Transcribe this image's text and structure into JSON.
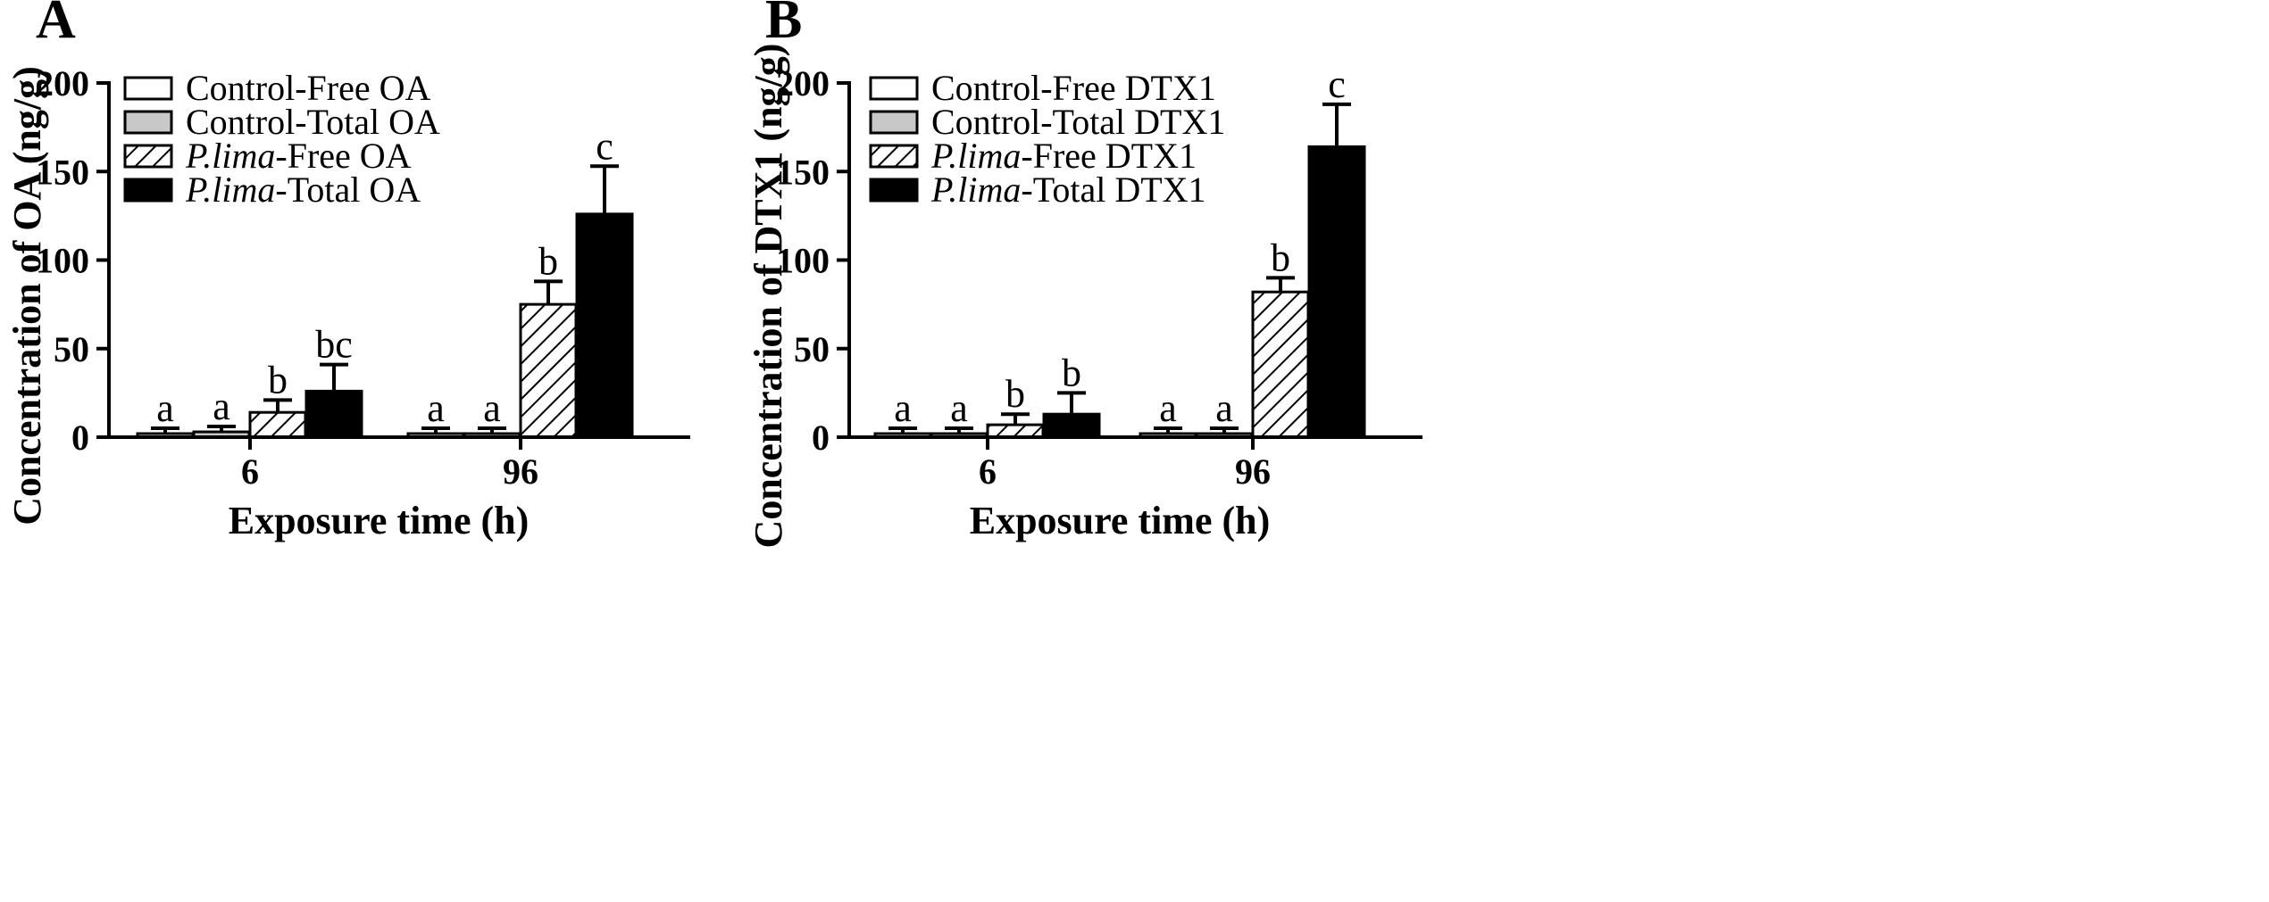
{
  "chart_data": [
    {
      "panel": "A",
      "type": "bar",
      "xlabel": "Exposure time (h)",
      "ylabel": "Concentration of OA (ng/g)",
      "ylim": [
        0,
        200
      ],
      "yticks": [
        0,
        50,
        100,
        150,
        200
      ],
      "categories": [
        "6",
        "96"
      ],
      "legend_position": "top-left",
      "series": [
        {
          "name": "Control-Free OA",
          "label_prefix": "",
          "label_rest": "Control-Free OA",
          "fill": "white",
          "values": [
            1,
            0
          ],
          "errors": [
            1.5,
            1.5
          ],
          "sig": [
            "a",
            "a"
          ]
        },
        {
          "name": "Control-Total OA",
          "label_prefix": "",
          "label_rest": "Control-Total OA",
          "fill": "gray",
          "values": [
            3,
            1
          ],
          "errors": [
            1.5,
            1.5
          ],
          "sig": [
            "a",
            "a"
          ]
        },
        {
          "name": "P.lima-Free OA",
          "label_prefix": "P.lima",
          "label_rest": "-Free OA",
          "fill": "hatch",
          "values": [
            14,
            75
          ],
          "errors": [
            7,
            13
          ],
          "sig": [
            "b",
            "b"
          ]
        },
        {
          "name": "P.lima-Total OA",
          "label_prefix": "P.lima",
          "label_rest": "-Total OA",
          "fill": "black",
          "values": [
            26,
            126
          ],
          "errors": [
            15,
            27
          ],
          "sig": [
            "bc",
            "c"
          ]
        }
      ]
    },
    {
      "panel": "B",
      "type": "bar",
      "xlabel": "Exposure time (h)",
      "ylabel": "Concentration of DTX1 (ng/g)",
      "ylim": [
        0,
        200
      ],
      "yticks": [
        0,
        50,
        100,
        150,
        200
      ],
      "categories": [
        "6",
        "96"
      ],
      "legend_position": "top-left",
      "series": [
        {
          "name": "Control-Free DTX1",
          "label_prefix": "",
          "label_rest": "Control-Free DTX1",
          "fill": "white",
          "values": [
            0,
            0
          ],
          "errors": [
            1.5,
            1.5
          ],
          "sig": [
            "a",
            "a"
          ]
        },
        {
          "name": "Control-Total DTX1",
          "label_prefix": "",
          "label_rest": "Control-Total DTX1",
          "fill": "gray",
          "values": [
            0,
            0
          ],
          "errors": [
            1.5,
            1.5
          ],
          "sig": [
            "a",
            "a"
          ]
        },
        {
          "name": "P.lima-Free DTX1",
          "label_prefix": "P.lima",
          "label_rest": "-Free DTX1",
          "fill": "hatch",
          "values": [
            7,
            82
          ],
          "errors": [
            6,
            8
          ],
          "sig": [
            "b",
            "b"
          ]
        },
        {
          "name": "P.lima-Total DTX1",
          "label_prefix": "P.lima",
          "label_rest": "-Total DTX1",
          "fill": "black",
          "values": [
            13,
            164
          ],
          "errors": [
            12,
            24
          ],
          "sig": [
            "b",
            "c"
          ]
        }
      ]
    }
  ],
  "colors": {
    "gray": "#c8c8c8",
    "black": "#000000",
    "white": "#ffffff",
    "hatch_line": "#000000"
  }
}
